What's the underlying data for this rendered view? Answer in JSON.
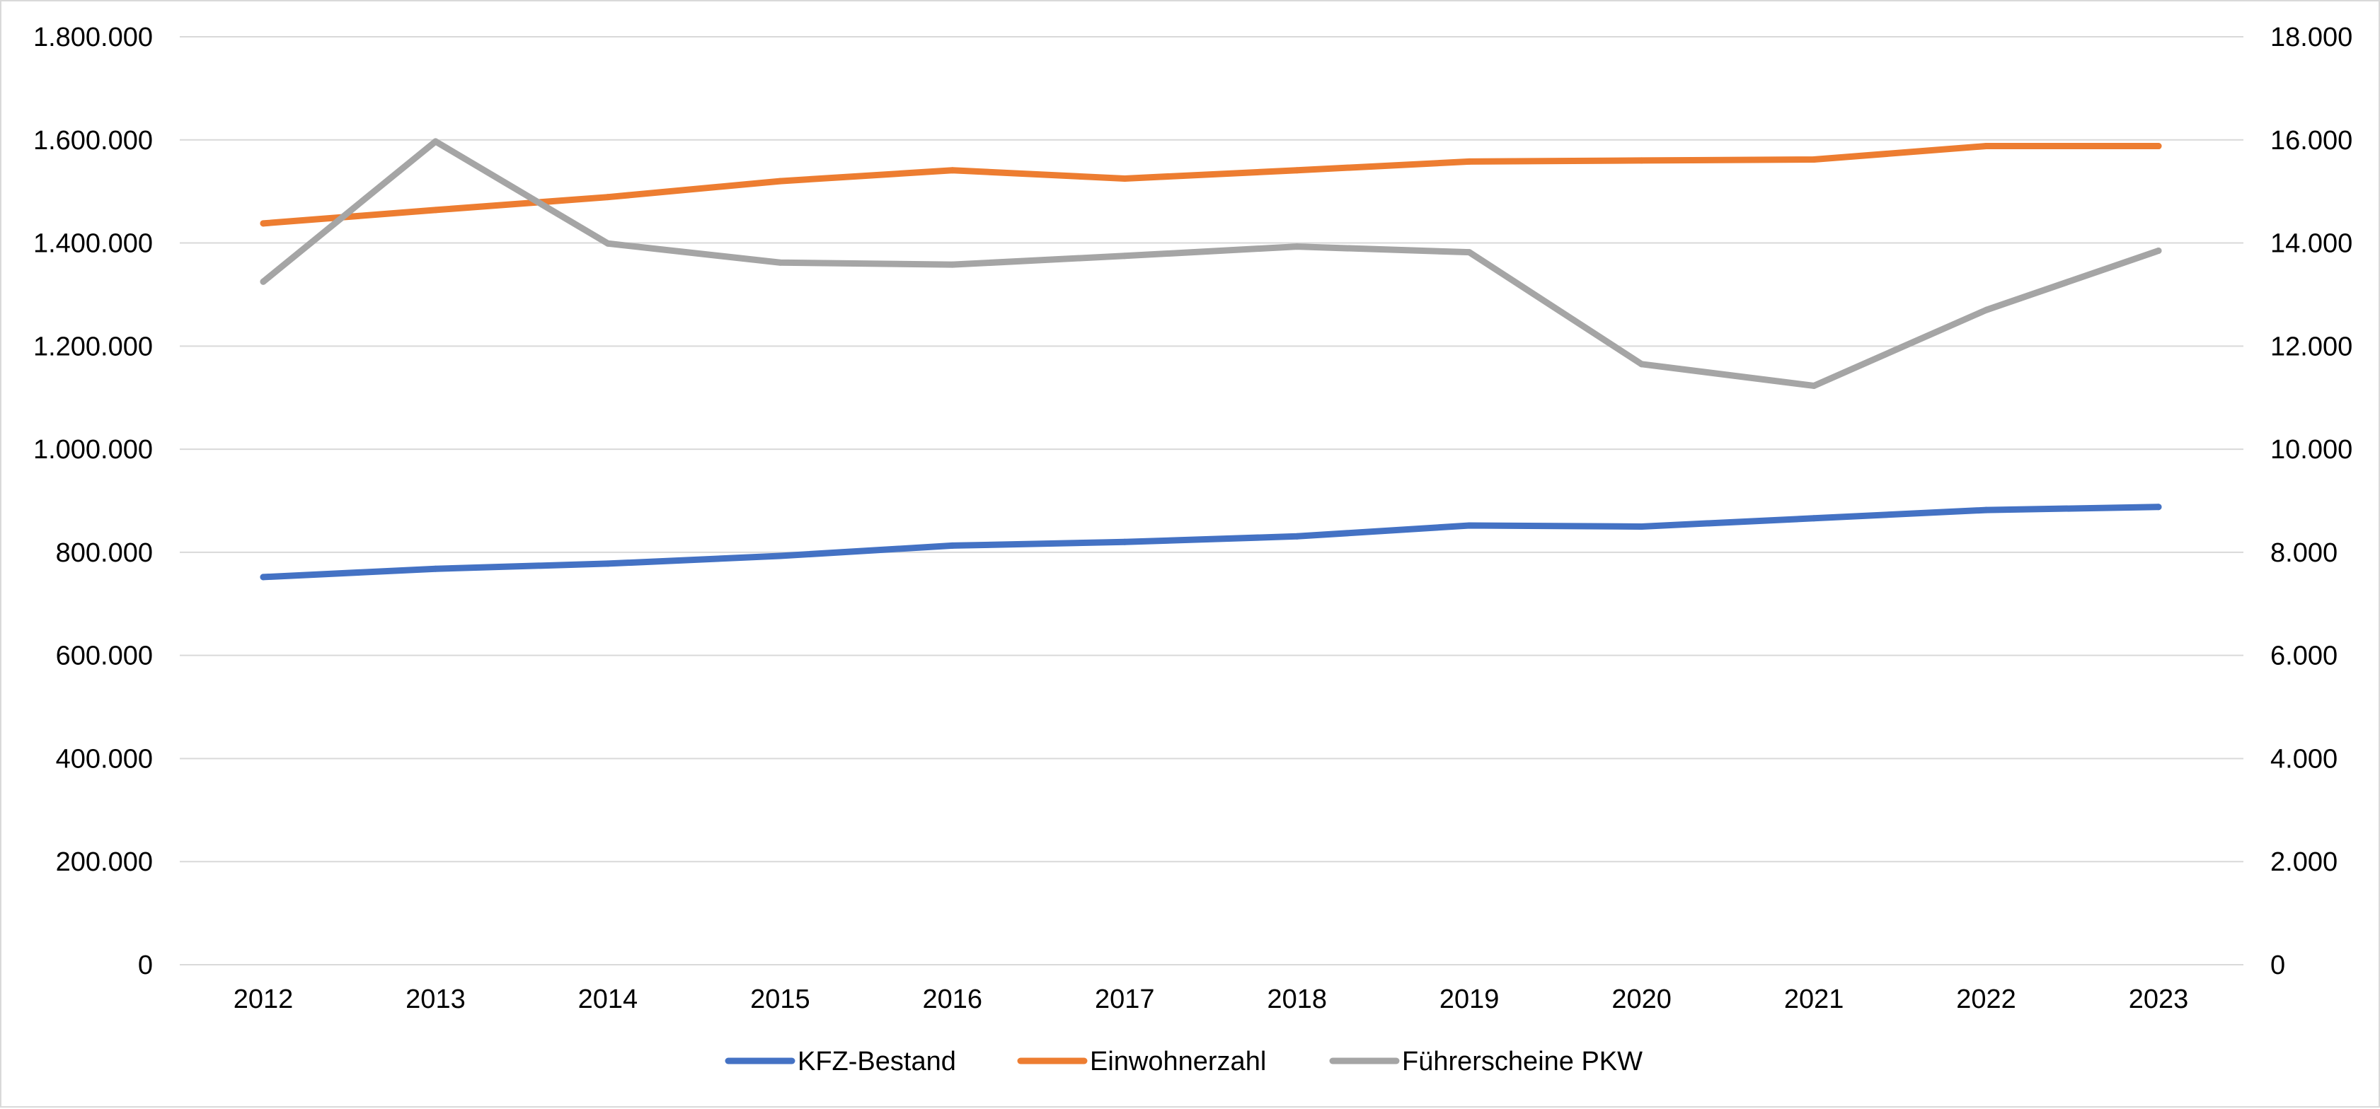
{
  "chart_data": {
    "type": "line",
    "title": "",
    "xlabel": "",
    "ylabel": "",
    "y2label": "",
    "categories": [
      "2012",
      "2013",
      "2014",
      "2015",
      "2016",
      "2017",
      "2018",
      "2019",
      "2020",
      "2021",
      "2022",
      "2023"
    ],
    "ylim": [
      0,
      1800000
    ],
    "y2lim": [
      0,
      18000
    ],
    "y_ticks": [
      "0",
      "200.000",
      "400.000",
      "600.000",
      "800.000",
      "1.000.000",
      "1.200.000",
      "1.400.000",
      "1.600.000",
      "1.800.000"
    ],
    "y2_ticks": [
      "0",
      "2.000",
      "4.000",
      "6.000",
      "8.000",
      "10.000",
      "12.000",
      "14.000",
      "16.000",
      "18.000"
    ],
    "grid": true,
    "legend_position": "bottom",
    "series": [
      {
        "name": "KFZ-Bestand",
        "axis": "left",
        "color": "#4472C4",
        "values": [
          752000,
          768000,
          778000,
          793000,
          813000,
          820000,
          831000,
          852000,
          850000,
          866000,
          882000,
          888000
        ]
      },
      {
        "name": "Einwohnerzahl",
        "axis": "left",
        "color": "#ED7D31",
        "values": [
          1438000,
          1464000,
          1489000,
          1520000,
          1541000,
          1525000,
          1541000,
          1558000,
          1560000,
          1562000,
          1588000,
          1588000
        ]
      },
      {
        "name": "Führerscheine PKW",
        "axis": "right",
        "color": "#A5A5A5",
        "values": [
          13250,
          15970,
          13990,
          13620,
          13580,
          13750,
          13930,
          13820,
          11650,
          11230,
          12700,
          13850
        ]
      }
    ]
  }
}
